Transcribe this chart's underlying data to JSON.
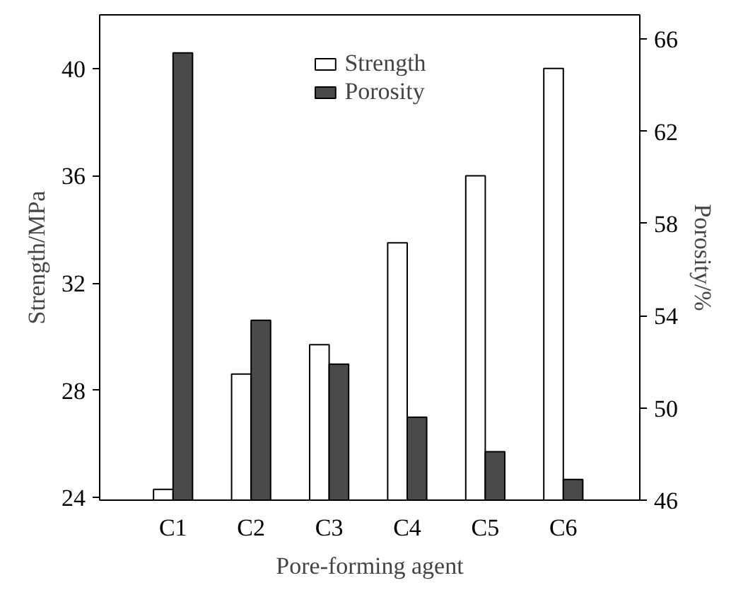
{
  "chart_data": {
    "type": "bar",
    "xlabel": "Pore-forming agent",
    "ylabel": "Strength/MPa",
    "y2label": "Porosity/%",
    "categories": [
      "C1",
      "C2",
      "C3",
      "C4",
      "C5",
      "C6"
    ],
    "series": [
      {
        "name": "Strength",
        "color": "#ffffff",
        "values": [
          24.3,
          28.6,
          29.7,
          33.5,
          36.0,
          40.0
        ]
      },
      {
        "name": "Porosity",
        "color": "#4a4a4a",
        "axis": "y2",
        "values": [
          65.4,
          53.8,
          51.9,
          49.6,
          48.1,
          46.9
        ]
      }
    ],
    "ylim": [
      23.9,
      42
    ],
    "yticks": [
      24,
      28,
      32,
      36,
      40
    ],
    "y2lim": [
      46,
      67.05
    ],
    "y2ticks": [
      46,
      50,
      54,
      58,
      62,
      66
    ],
    "grid": false,
    "legend": "top"
  }
}
